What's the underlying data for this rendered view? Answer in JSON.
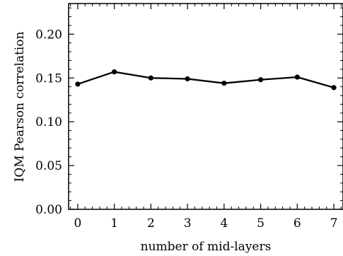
{
  "chart_data": {
    "type": "line",
    "title": "",
    "xlabel": "number of mid-layers",
    "ylabel": "IQM Pearson correlation",
    "xlim": [
      -0.25,
      7.25
    ],
    "ylim": [
      0.0,
      0.235
    ],
    "x_ticks": [
      0,
      1,
      2,
      3,
      4,
      5,
      6,
      7
    ],
    "x_tick_labels": [
      "0",
      "1",
      "2",
      "3",
      "4",
      "5",
      "6",
      "7"
    ],
    "y_ticks": [
      0.0,
      0.05,
      0.1,
      0.15,
      0.2
    ],
    "y_tick_labels": [
      "0.00",
      "0.05",
      "0.10",
      "0.15",
      "0.20"
    ],
    "grid": false,
    "legend": "none",
    "series": [
      {
        "x": [
          0,
          1,
          2,
          3,
          4,
          5,
          6,
          7
        ],
        "values": [
          0.143,
          0.157,
          0.15,
          0.149,
          0.144,
          0.148,
          0.151,
          0.139
        ],
        "color": "#000000",
        "marker": "circle"
      }
    ]
  }
}
